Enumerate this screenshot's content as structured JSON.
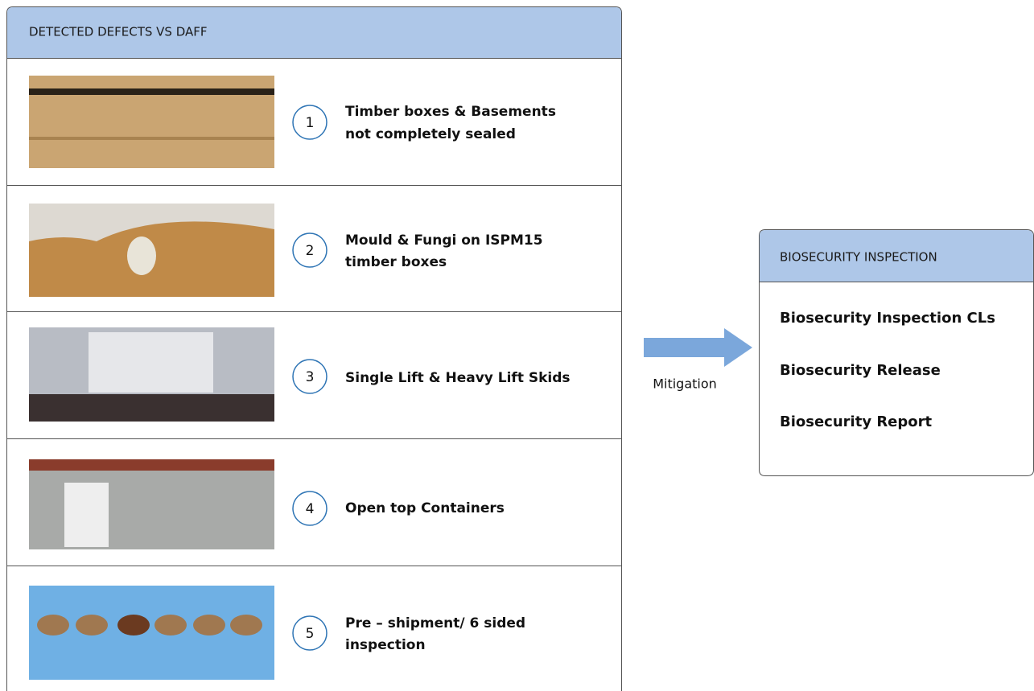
{
  "left_panel": {
    "title": "DETECTED DEFECTS VS DAFF",
    "items": [
      {
        "number": "1",
        "lines": [
          "Timber boxes & Basements",
          "not completely sealed"
        ]
      },
      {
        "number": "2",
        "lines": [
          "Mould & Fungi on ISPM15",
          "timber boxes"
        ]
      },
      {
        "number": "3",
        "lines": [
          "Single Lift & Heavy Lift Skids"
        ]
      },
      {
        "number": "4",
        "lines": [
          "Open top Containers"
        ]
      },
      {
        "number": "5",
        "lines": [
          "Pre – shipment/ 6 sided",
          "inspection"
        ]
      }
    ]
  },
  "arrow": {
    "label": "Mitigation"
  },
  "right_panel": {
    "title": "BIOSECURITY INSPECTION",
    "items": [
      "Biosecurity Inspection CLs",
      "Biosecurity Release",
      "Biosecurity Report"
    ]
  }
}
